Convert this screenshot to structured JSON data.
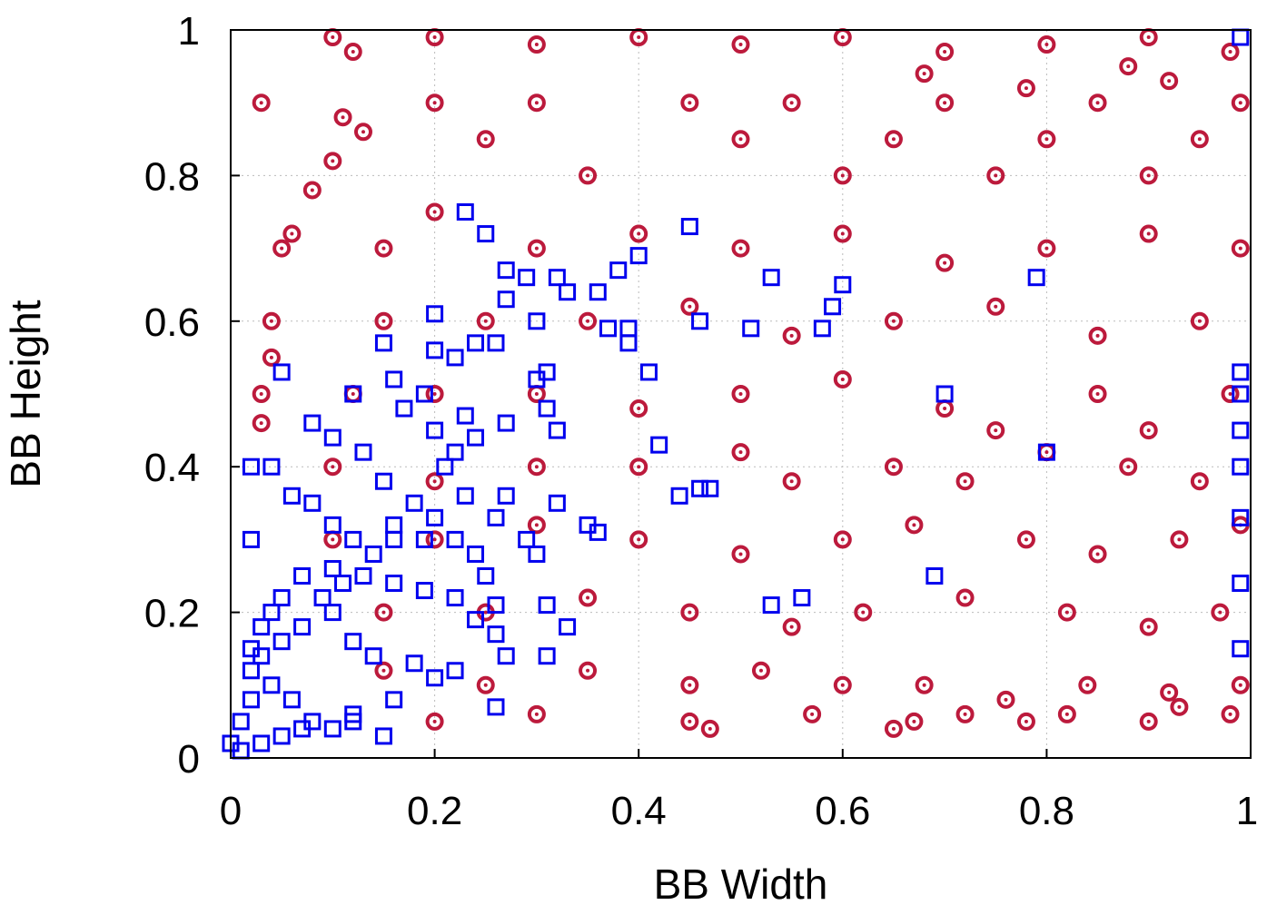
{
  "chart_data": {
    "type": "scatter",
    "title": "",
    "xlabel": "BB Width",
    "ylabel": "BB Height",
    "xlim": [
      0,
      1
    ],
    "ylim": [
      0,
      1
    ],
    "x_ticks": [
      "0",
      "0.2",
      "0.4",
      "0.6",
      "0.8",
      "1"
    ],
    "y_ticks": [
      "0",
      "0.2",
      "0.4",
      "0.6",
      "0.8",
      "1"
    ],
    "x_tick_values": [
      0,
      0.2,
      0.4,
      0.6,
      0.8,
      1
    ],
    "y_tick_values": [
      0,
      0.2,
      0.4,
      0.6,
      0.8,
      1
    ],
    "grid": true,
    "legend": "none",
    "series": [
      {
        "marker": "circle-dot",
        "color": "#BC1A3C",
        "description_points": "dense cloud, sampled",
        "points": [
          [
            0.03,
            0.9
          ],
          [
            0.1,
            0.99
          ],
          [
            0.12,
            0.97
          ],
          [
            0.2,
            0.99
          ],
          [
            0.3,
            0.98
          ],
          [
            0.4,
            0.99
          ],
          [
            0.5,
            0.98
          ],
          [
            0.6,
            0.99
          ],
          [
            0.7,
            0.97
          ],
          [
            0.8,
            0.98
          ],
          [
            0.9,
            0.99
          ],
          [
            0.98,
            0.97
          ],
          [
            0.11,
            0.88
          ],
          [
            0.13,
            0.86
          ],
          [
            0.1,
            0.82
          ],
          [
            0.08,
            0.78
          ],
          [
            0.06,
            0.72
          ],
          [
            0.05,
            0.7
          ],
          [
            0.04,
            0.6
          ],
          [
            0.04,
            0.55
          ],
          [
            0.03,
            0.5
          ],
          [
            0.03,
            0.46
          ],
          [
            0.2,
            0.9
          ],
          [
            0.25,
            0.85
          ],
          [
            0.3,
            0.9
          ],
          [
            0.35,
            0.8
          ],
          [
            0.45,
            0.9
          ],
          [
            0.5,
            0.85
          ],
          [
            0.55,
            0.9
          ],
          [
            0.6,
            0.8
          ],
          [
            0.65,
            0.85
          ],
          [
            0.7,
            0.9
          ],
          [
            0.75,
            0.8
          ],
          [
            0.8,
            0.85
          ],
          [
            0.85,
            0.9
          ],
          [
            0.9,
            0.8
          ],
          [
            0.95,
            0.85
          ],
          [
            0.99,
            0.9
          ],
          [
            0.92,
            0.93
          ],
          [
            0.88,
            0.95
          ],
          [
            0.78,
            0.92
          ],
          [
            0.68,
            0.94
          ],
          [
            0.15,
            0.7
          ],
          [
            0.2,
            0.75
          ],
          [
            0.3,
            0.7
          ],
          [
            0.4,
            0.72
          ],
          [
            0.5,
            0.7
          ],
          [
            0.6,
            0.72
          ],
          [
            0.7,
            0.68
          ],
          [
            0.8,
            0.7
          ],
          [
            0.9,
            0.72
          ],
          [
            0.99,
            0.7
          ],
          [
            0.15,
            0.6
          ],
          [
            0.25,
            0.6
          ],
          [
            0.35,
            0.6
          ],
          [
            0.45,
            0.62
          ],
          [
            0.55,
            0.58
          ],
          [
            0.65,
            0.6
          ],
          [
            0.75,
            0.62
          ],
          [
            0.85,
            0.58
          ],
          [
            0.95,
            0.6
          ],
          [
            0.12,
            0.5
          ],
          [
            0.2,
            0.5
          ],
          [
            0.3,
            0.5
          ],
          [
            0.4,
            0.48
          ],
          [
            0.5,
            0.5
          ],
          [
            0.6,
            0.52
          ],
          [
            0.7,
            0.48
          ],
          [
            0.75,
            0.45
          ],
          [
            0.85,
            0.5
          ],
          [
            0.9,
            0.45
          ],
          [
            0.98,
            0.5
          ],
          [
            0.1,
            0.4
          ],
          [
            0.2,
            0.38
          ],
          [
            0.3,
            0.4
          ],
          [
            0.4,
            0.4
          ],
          [
            0.5,
            0.42
          ],
          [
            0.55,
            0.38
          ],
          [
            0.65,
            0.4
          ],
          [
            0.72,
            0.38
          ],
          [
            0.8,
            0.42
          ],
          [
            0.88,
            0.4
          ],
          [
            0.95,
            0.38
          ],
          [
            0.1,
            0.3
          ],
          [
            0.2,
            0.3
          ],
          [
            0.3,
            0.32
          ],
          [
            0.4,
            0.3
          ],
          [
            0.5,
            0.28
          ],
          [
            0.6,
            0.3
          ],
          [
            0.67,
            0.32
          ],
          [
            0.78,
            0.3
          ],
          [
            0.85,
            0.28
          ],
          [
            0.93,
            0.3
          ],
          [
            0.99,
            0.32
          ],
          [
            0.15,
            0.2
          ],
          [
            0.25,
            0.2
          ],
          [
            0.35,
            0.22
          ],
          [
            0.45,
            0.2
          ],
          [
            0.55,
            0.18
          ],
          [
            0.62,
            0.2
          ],
          [
            0.72,
            0.22
          ],
          [
            0.82,
            0.2
          ],
          [
            0.9,
            0.18
          ],
          [
            0.97,
            0.2
          ],
          [
            0.15,
            0.12
          ],
          [
            0.25,
            0.1
          ],
          [
            0.35,
            0.12
          ],
          [
            0.45,
            0.1
          ],
          [
            0.52,
            0.12
          ],
          [
            0.6,
            0.1
          ],
          [
            0.68,
            0.1
          ],
          [
            0.76,
            0.08
          ],
          [
            0.84,
            0.1
          ],
          [
            0.92,
            0.09
          ],
          [
            0.99,
            0.1
          ],
          [
            0.2,
            0.05
          ],
          [
            0.3,
            0.06
          ],
          [
            0.45,
            0.05
          ],
          [
            0.47,
            0.04
          ],
          [
            0.57,
            0.06
          ],
          [
            0.65,
            0.04
          ],
          [
            0.67,
            0.05
          ],
          [
            0.72,
            0.06
          ],
          [
            0.78,
            0.05
          ],
          [
            0.82,
            0.06
          ],
          [
            0.9,
            0.05
          ],
          [
            0.93,
            0.07
          ],
          [
            0.98,
            0.06
          ]
        ]
      },
      {
        "marker": "square",
        "color": "#0000EE",
        "description_points": "concentrated near origin, sampled",
        "points": [
          [
            0.23,
            0.75
          ],
          [
            0.25,
            0.72
          ],
          [
            0.45,
            0.73
          ],
          [
            0.4,
            0.69
          ],
          [
            0.38,
            0.67
          ],
          [
            0.53,
            0.66
          ],
          [
            0.6,
            0.65
          ],
          [
            0.59,
            0.62
          ],
          [
            0.58,
            0.59
          ],
          [
            0.51,
            0.59
          ],
          [
            0.46,
            0.6
          ],
          [
            0.79,
            0.66
          ],
          [
            0.27,
            0.67
          ],
          [
            0.29,
            0.66
          ],
          [
            0.32,
            0.66
          ],
          [
            0.33,
            0.64
          ],
          [
            0.36,
            0.64
          ],
          [
            0.27,
            0.63
          ],
          [
            0.3,
            0.6
          ],
          [
            0.2,
            0.61
          ],
          [
            0.15,
            0.57
          ],
          [
            0.05,
            0.53
          ],
          [
            0.37,
            0.59
          ],
          [
            0.39,
            0.59
          ],
          [
            0.39,
            0.57
          ],
          [
            0.41,
            0.53
          ],
          [
            0.31,
            0.53
          ],
          [
            0.3,
            0.52
          ],
          [
            0.26,
            0.57
          ],
          [
            0.24,
            0.57
          ],
          [
            0.22,
            0.55
          ],
          [
            0.2,
            0.56
          ],
          [
            0.7,
            0.5
          ],
          [
            0.8,
            0.42
          ],
          [
            0.42,
            0.43
          ],
          [
            0.46,
            0.37
          ],
          [
            0.47,
            0.37
          ],
          [
            0.44,
            0.36
          ],
          [
            0.99,
            0.53
          ],
          [
            0.99,
            0.5
          ],
          [
            0.99,
            0.45
          ],
          [
            0.99,
            0.4
          ],
          [
            0.99,
            0.33
          ],
          [
            0.99,
            0.24
          ],
          [
            0.99,
            0.15
          ],
          [
            0.99,
            0.99
          ],
          [
            0.31,
            0.48
          ],
          [
            0.32,
            0.45
          ],
          [
            0.27,
            0.46
          ],
          [
            0.23,
            0.47
          ],
          [
            0.2,
            0.45
          ],
          [
            0.22,
            0.42
          ],
          [
            0.24,
            0.44
          ],
          [
            0.12,
            0.5
          ],
          [
            0.08,
            0.46
          ],
          [
            0.02,
            0.4
          ],
          [
            0.04,
            0.4
          ],
          [
            0.06,
            0.36
          ],
          [
            0.08,
            0.35
          ],
          [
            0.1,
            0.32
          ],
          [
            0.12,
            0.3
          ],
          [
            0.02,
            0.3
          ],
          [
            0.16,
            0.32
          ],
          [
            0.19,
            0.3
          ],
          [
            0.22,
            0.3
          ],
          [
            0.24,
            0.28
          ],
          [
            0.27,
            0.36
          ],
          [
            0.26,
            0.33
          ],
          [
            0.29,
            0.3
          ],
          [
            0.32,
            0.35
          ],
          [
            0.35,
            0.32
          ],
          [
            0.36,
            0.31
          ],
          [
            0.3,
            0.28
          ],
          [
            0.25,
            0.25
          ],
          [
            0.56,
            0.22
          ],
          [
            0.53,
            0.21
          ],
          [
            0.69,
            0.25
          ],
          [
            0.31,
            0.21
          ],
          [
            0.33,
            0.18
          ],
          [
            0.31,
            0.14
          ],
          [
            0.27,
            0.14
          ],
          [
            0.26,
            0.17
          ],
          [
            0.24,
            0.19
          ],
          [
            0.26,
            0.21
          ],
          [
            0.22,
            0.22
          ],
          [
            0.19,
            0.23
          ],
          [
            0.16,
            0.24
          ],
          [
            0.13,
            0.25
          ],
          [
            0.1,
            0.26
          ],
          [
            0.07,
            0.25
          ],
          [
            0.05,
            0.22
          ],
          [
            0.04,
            0.2
          ],
          [
            0.03,
            0.18
          ],
          [
            0.02,
            0.15
          ],
          [
            0.1,
            0.2
          ],
          [
            0.12,
            0.16
          ],
          [
            0.14,
            0.14
          ],
          [
            0.18,
            0.13
          ],
          [
            0.2,
            0.11
          ],
          [
            0.22,
            0.12
          ],
          [
            0.16,
            0.08
          ],
          [
            0.12,
            0.06
          ],
          [
            0.08,
            0.05
          ],
          [
            0.06,
            0.08
          ],
          [
            0.04,
            0.1
          ],
          [
            0.02,
            0.08
          ],
          [
            0.01,
            0.05
          ],
          [
            0.0,
            0.02
          ],
          [
            0.01,
            0.01
          ],
          [
            0.03,
            0.02
          ],
          [
            0.05,
            0.03
          ],
          [
            0.07,
            0.04
          ],
          [
            0.1,
            0.04
          ],
          [
            0.12,
            0.05
          ],
          [
            0.15,
            0.03
          ],
          [
            0.26,
            0.07
          ],
          [
            0.02,
            0.12
          ],
          [
            0.03,
            0.14
          ],
          [
            0.05,
            0.16
          ],
          [
            0.07,
            0.18
          ],
          [
            0.09,
            0.22
          ],
          [
            0.11,
            0.24
          ],
          [
            0.14,
            0.28
          ],
          [
            0.16,
            0.3
          ],
          [
            0.18,
            0.35
          ],
          [
            0.15,
            0.38
          ],
          [
            0.13,
            0.42
          ],
          [
            0.1,
            0.44
          ],
          [
            0.17,
            0.48
          ],
          [
            0.19,
            0.5
          ],
          [
            0.16,
            0.52
          ],
          [
            0.21,
            0.4
          ],
          [
            0.23,
            0.36
          ],
          [
            0.2,
            0.33
          ]
        ]
      }
    ]
  }
}
